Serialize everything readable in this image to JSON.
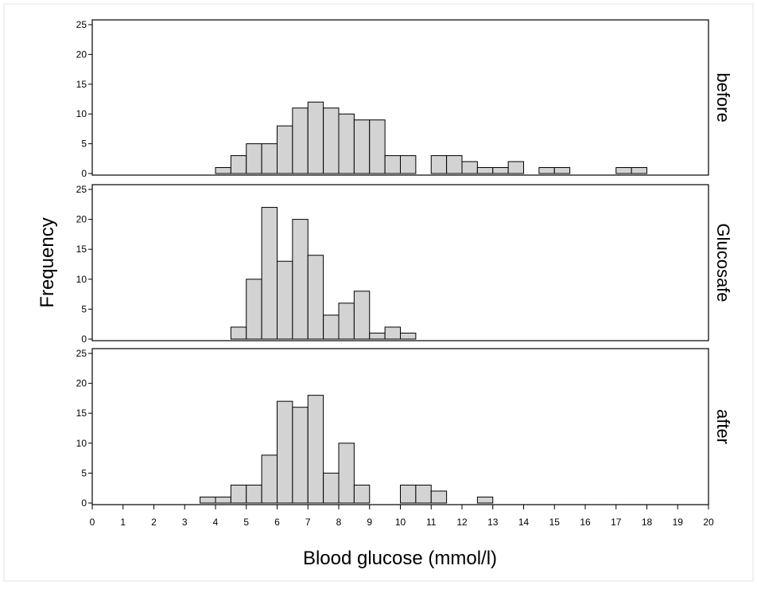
{
  "chart_data": {
    "type": "bar",
    "xlabel": "Blood glucose (mmol/l)",
    "ylabel": "Frequency",
    "xlim": [
      0,
      20
    ],
    "ylim": [
      0,
      25
    ],
    "x_ticks": [
      "0",
      "1",
      "2",
      "3",
      "4",
      "5",
      "6",
      "7",
      "8",
      "9",
      "10",
      "11",
      "12",
      "13",
      "14",
      "15",
      "16",
      "17",
      "18",
      "19",
      "20"
    ],
    "y_ticks": [
      "0",
      "5",
      "10",
      "15",
      "20",
      "25"
    ],
    "bin_width": 0.5,
    "grid": false,
    "colors": {
      "bar_fill": "#d3d3d3",
      "bar_stroke": "#000000"
    },
    "panels": [
      {
        "label": "before",
        "bins": [
          {
            "x": 4.25,
            "y": 1
          },
          {
            "x": 4.75,
            "y": 3
          },
          {
            "x": 5.25,
            "y": 5
          },
          {
            "x": 5.75,
            "y": 5
          },
          {
            "x": 6.25,
            "y": 8
          },
          {
            "x": 6.75,
            "y": 11
          },
          {
            "x": 7.25,
            "y": 12
          },
          {
            "x": 7.75,
            "y": 11
          },
          {
            "x": 8.25,
            "y": 10
          },
          {
            "x": 8.75,
            "y": 9
          },
          {
            "x": 9.25,
            "y": 9
          },
          {
            "x": 9.75,
            "y": 3
          },
          {
            "x": 10.25,
            "y": 3
          },
          {
            "x": 11.25,
            "y": 3
          },
          {
            "x": 11.75,
            "y": 3
          },
          {
            "x": 12.25,
            "y": 2
          },
          {
            "x": 12.75,
            "y": 1
          },
          {
            "x": 13.25,
            "y": 1
          },
          {
            "x": 13.75,
            "y": 2
          },
          {
            "x": 14.75,
            "y": 1
          },
          {
            "x": 15.25,
            "y": 1
          },
          {
            "x": 17.25,
            "y": 1
          },
          {
            "x": 17.75,
            "y": 1
          }
        ]
      },
      {
        "label": "Glucosafe",
        "bins": [
          {
            "x": 4.75,
            "y": 2
          },
          {
            "x": 5.25,
            "y": 10
          },
          {
            "x": 5.75,
            "y": 22
          },
          {
            "x": 6.25,
            "y": 13
          },
          {
            "x": 6.75,
            "y": 20
          },
          {
            "x": 7.25,
            "y": 14
          },
          {
            "x": 7.75,
            "y": 4
          },
          {
            "x": 8.25,
            "y": 6
          },
          {
            "x": 8.75,
            "y": 8
          },
          {
            "x": 9.25,
            "y": 1
          },
          {
            "x": 9.75,
            "y": 2
          },
          {
            "x": 10.25,
            "y": 1
          }
        ]
      },
      {
        "label": "after",
        "bins": [
          {
            "x": 3.75,
            "y": 1
          },
          {
            "x": 4.25,
            "y": 1
          },
          {
            "x": 4.75,
            "y": 3
          },
          {
            "x": 5.25,
            "y": 3
          },
          {
            "x": 5.75,
            "y": 8
          },
          {
            "x": 6.25,
            "y": 17
          },
          {
            "x": 6.75,
            "y": 16
          },
          {
            "x": 7.25,
            "y": 18
          },
          {
            "x": 7.75,
            "y": 5
          },
          {
            "x": 8.25,
            "y": 10
          },
          {
            "x": 8.75,
            "y": 3
          },
          {
            "x": 10.25,
            "y": 3
          },
          {
            "x": 10.75,
            "y": 3
          },
          {
            "x": 11.25,
            "y": 2
          },
          {
            "x": 12.75,
            "y": 1
          }
        ]
      }
    ]
  }
}
